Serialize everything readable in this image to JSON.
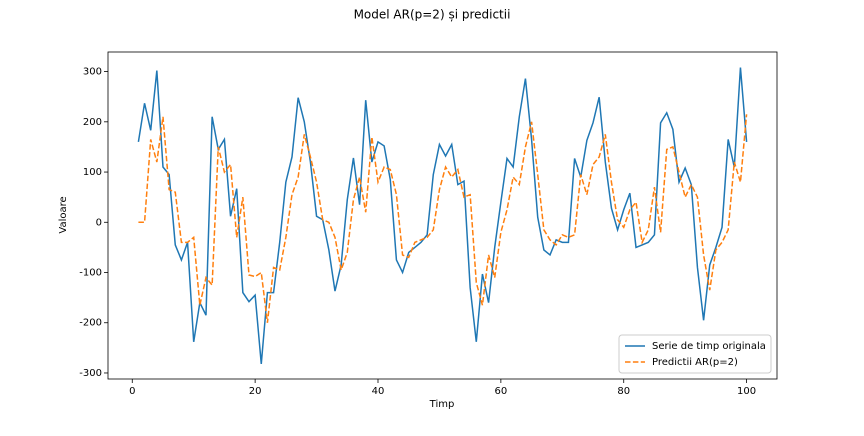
{
  "chart_data": {
    "type": "line",
    "title": "Model AR(p=2) și predictii",
    "x_label": "Timp",
    "y_label": "Valoare",
    "x": [
      1,
      2,
      3,
      4,
      5,
      6,
      7,
      8,
      9,
      10,
      11,
      12,
      13,
      14,
      15,
      16,
      17,
      18,
      19,
      20,
      21,
      22,
      23,
      24,
      25,
      26,
      27,
      28,
      29,
      30,
      31,
      32,
      33,
      34,
      35,
      36,
      37,
      38,
      39,
      40,
      41,
      42,
      43,
      44,
      45,
      46,
      47,
      48,
      49,
      50,
      51,
      52,
      53,
      54,
      55,
      56,
      57,
      58,
      59,
      60,
      61,
      62,
      63,
      64,
      65,
      66,
      67,
      68,
      69,
      70,
      71,
      72,
      73,
      74,
      75,
      76,
      77,
      78,
      79,
      80,
      81,
      82,
      83,
      84,
      85,
      86,
      87,
      88,
      89,
      90,
      91,
      92,
      93,
      94,
      95,
      96,
      97,
      98,
      99,
      100
    ],
    "series": [
      {
        "name": "Serie de timp originala",
        "color": "#1f77b4",
        "dashed": false,
        "values": [
          160,
          237,
          183,
          302,
          110,
          95,
          -45,
          -75,
          -40,
          -238,
          -160,
          -185,
          210,
          145,
          165,
          12,
          67,
          -140,
          -158,
          -145,
          -282,
          -140,
          -140,
          -40,
          80,
          130,
          248,
          200,
          120,
          12,
          5,
          -55,
          -137,
          -85,
          45,
          128,
          35,
          243,
          120,
          160,
          152,
          85,
          -75,
          -100,
          -60,
          -50,
          -40,
          -25,
          95,
          155,
          132,
          155,
          75,
          82,
          -130,
          -238,
          -103,
          -160,
          -50,
          40,
          127,
          110,
          210,
          286,
          165,
          10,
          -55,
          -65,
          -35,
          -40,
          -40,
          127,
          90,
          163,
          198,
          249,
          120,
          28,
          -15,
          25,
          58,
          -50,
          -45,
          -40,
          -25,
          198,
          218,
          185,
          80,
          108,
          75,
          -90,
          -195,
          -85,
          -50,
          -10,
          165,
          110,
          308,
          160
        ]
      },
      {
        "name": "Predictii AR(p=2)",
        "color": "#ff7f0e",
        "dashed": true,
        "values": [
          0,
          0,
          165,
          120,
          210,
          65,
          60,
          -40,
          -40,
          -30,
          -165,
          -110,
          -125,
          150,
          100,
          115,
          -30,
          50,
          -105,
          -108,
          -100,
          -200,
          -90,
          -95,
          -30,
          55,
          90,
          175,
          130,
          80,
          5,
          0,
          -30,
          -95,
          -60,
          45,
          90,
          20,
          170,
          80,
          110,
          105,
          55,
          -65,
          -70,
          -40,
          -35,
          -30,
          -15,
          65,
          110,
          90,
          105,
          50,
          55,
          -120,
          -165,
          -65,
          -110,
          -20,
          25,
          90,
          75,
          150,
          200,
          95,
          -15,
          -35,
          -45,
          -25,
          -30,
          -25,
          95,
          55,
          115,
          130,
          175,
          80,
          5,
          -10,
          25,
          40,
          -40,
          -15,
          70,
          -20,
          145,
          150,
          100,
          50,
          75,
          50,
          -65,
          -135,
          -55,
          -40,
          -15,
          120,
          80,
          215
        ]
      }
    ],
    "xlim": [
      -3.95,
      104.95
    ],
    "ylim": [
      -312,
      339
    ],
    "xticks": [
      0,
      20,
      40,
      60,
      80,
      100
    ],
    "yticks": [
      -300,
      -200,
      -100,
      0,
      100,
      200,
      300
    ],
    "legend": "lower right"
  }
}
